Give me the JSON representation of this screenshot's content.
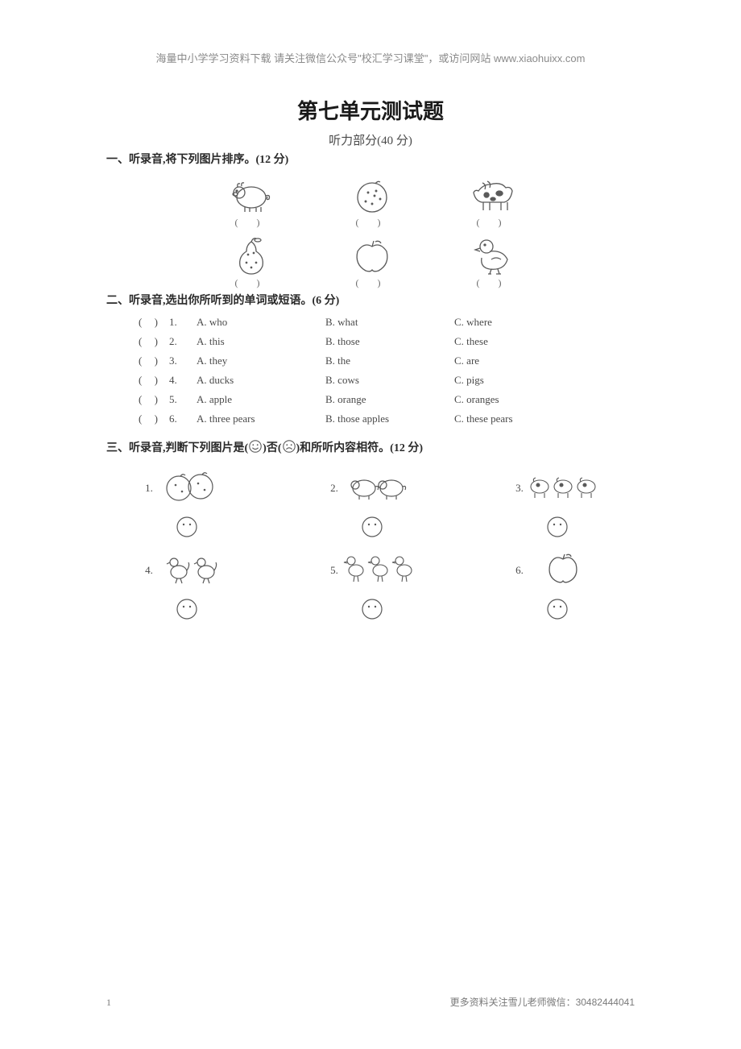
{
  "header_note": "海量中小学学习资料下载 请关注微信公众号\"校汇学习课堂\"，或访问网站 www.xiaohuixx.com",
  "title": "第七单元测试题",
  "subtitle": "听力部分(40 分)",
  "section1": {
    "heading": "一、听录音,将下列图片排序。(12 分)",
    "blank": "(    )",
    "icons": [
      "pig",
      "circle-dots",
      "cow",
      "pear",
      "apple",
      "duck"
    ]
  },
  "section2": {
    "heading": "二、听录音,选出你所听到的单词或短语。(6 分)",
    "rows": [
      {
        "n": "1.",
        "a": "A. who",
        "b": "B. what",
        "c": "C. where"
      },
      {
        "n": "2.",
        "a": "A. this",
        "b": "B. those",
        "c": "C. these"
      },
      {
        "n": "3.",
        "a": "A. they",
        "b": "B. the",
        "c": "C. are"
      },
      {
        "n": "4.",
        "a": "A. ducks",
        "b": "B. cows",
        "c": "C. pigs"
      },
      {
        "n": "5.",
        "a": "A. apple",
        "b": "B. orange",
        "c": "C. oranges"
      },
      {
        "n": "6.",
        "a": "A. three pears",
        "b": "B. those apples",
        "c": "C. these pears"
      }
    ],
    "paren": "(    )"
  },
  "section3": {
    "heading_pre": "三、听录音,判断下列图片是(",
    "heading_mid": ")否(",
    "heading_post": ")和所听内容相符。(12 分)",
    "items": [
      {
        "n": "1.",
        "icon": "oranges-2"
      },
      {
        "n": "2.",
        "icon": "pigs-2"
      },
      {
        "n": "3.",
        "icon": "cows-3"
      },
      {
        "n": "4.",
        "icon": "chickens-2"
      },
      {
        "n": "5.",
        "icon": "ducks-3"
      },
      {
        "n": "6.",
        "icon": "apple-1"
      }
    ]
  },
  "footer": {
    "page": "1",
    "right": "更多资料关注雪儿老师微信：30482444041"
  },
  "colors": {
    "stroke": "#5a5a5a",
    "text": "#4a4a4a",
    "bg": "#ffffff"
  }
}
